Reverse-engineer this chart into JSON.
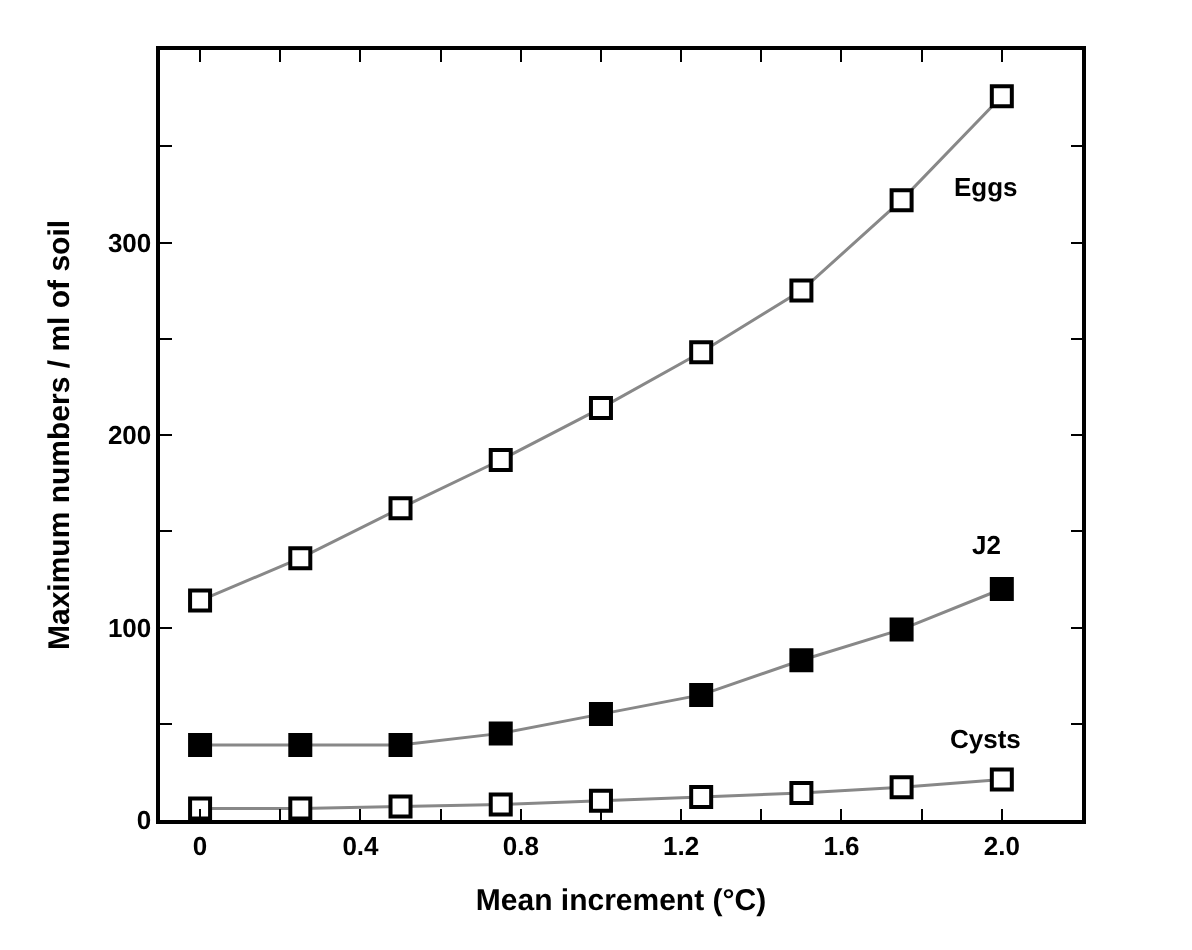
{
  "chart_data": {
    "type": "line",
    "xlabel": "Mean increment (°C)",
    "ylabel": "Maximum numbers / ml of soil",
    "x": [
      0,
      0.25,
      0.5,
      0.75,
      1.0,
      1.25,
      1.5,
      1.75,
      2.0
    ],
    "series": [
      {
        "name": "Eggs",
        "color": "#ffffff",
        "values": [
          114,
          136,
          162,
          187,
          214,
          243,
          275,
          322,
          376
        ]
      },
      {
        "name": "J2",
        "color": "#000000",
        "values": [
          39,
          39,
          39,
          45,
          55,
          65,
          83,
          99,
          120
        ]
      },
      {
        "name": "Cysts",
        "color": "#ffffff",
        "values": [
          6,
          6,
          7,
          8,
          10,
          12,
          14,
          17,
          21
        ]
      }
    ],
    "xlim": [
      -0.1,
      2.2
    ],
    "ylim": [
      0,
      400
    ],
    "xticks": [
      0,
      {
        "value": 0.2,
        "label": null
      },
      0.4,
      {
        "value": 0.6,
        "label": null
      },
      0.8,
      {
        "value": 1.0,
        "label": null
      },
      1.2,
      {
        "value": 1.4,
        "label": null
      },
      1.6,
      {
        "value": 1.8,
        "label": null
      },
      {
        "value": 2.0,
        "label": "2.0"
      },
      {
        "value": 2.2,
        "label": null
      }
    ],
    "yticks": [
      0,
      {
        "value": 50,
        "label": null
      },
      100,
      {
        "value": 150,
        "label": null
      },
      200,
      {
        "value": 250,
        "label": null
      },
      300,
      {
        "value": 350,
        "label": null
      }
    ],
    "marker": "square",
    "line_style": "solid",
    "legend": "right"
  }
}
